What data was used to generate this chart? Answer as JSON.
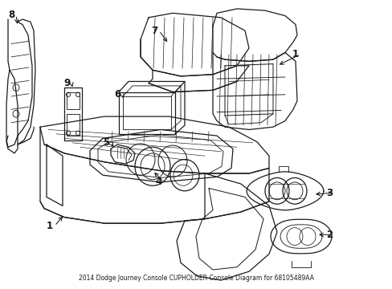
{
  "title": "2014 Dodge Journey Console CUPHOLDER-Console Diagram for 68105489AA",
  "bg": "#ffffff",
  "lc": "#1a1a1a",
  "lw": 0.9,
  "fig_w": 4.89,
  "fig_h": 3.6,
  "dpi": 100
}
